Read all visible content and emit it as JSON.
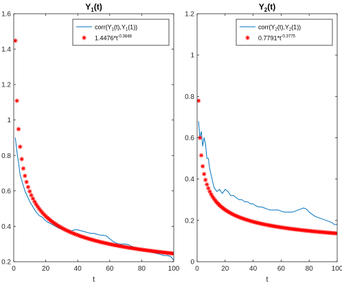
{
  "chart_data": [
    {
      "type": "line",
      "title": "Y",
      "title_sub": "1",
      "title_suffix": "(t)",
      "xlabel": "t",
      "ylabel": "",
      "xlim": [
        0,
        100
      ],
      "ylim": [
        0.2,
        1.6
      ],
      "xticks": [
        "0",
        "20",
        "40",
        "60",
        "80",
        "100"
      ],
      "yticks": [
        "0.2",
        "0.4",
        "0.6",
        "0.8",
        "1",
        "1.2",
        "1.4",
        "1.6"
      ],
      "legend": {
        "placement": "top-right",
        "entries": [
          {
            "marker": "line",
            "color": "#0072BD",
            "parts": [
              [
                "corr(Y",
                "n"
              ],
              [
                "1",
                "sub"
              ],
              [
                "(t),Y",
                "n"
              ],
              [
                "1",
                "sub"
              ],
              [
                "(1))",
                "n"
              ]
            ]
          },
          {
            "marker": "star",
            "color": "#FF0000",
            "parts": [
              [
                "1.4476*t",
                "n"
              ],
              [
                "-0.3848",
                "sup"
              ]
            ]
          }
        ]
      },
      "series": [
        {
          "kind": "line",
          "color": "#0072BD",
          "x": [
            1,
            2,
            3,
            4,
            5,
            6,
            7,
            8,
            9,
            10,
            12,
            14,
            16,
            18,
            20,
            22,
            24,
            26,
            28,
            30,
            32,
            34,
            36,
            38,
            40,
            42,
            44,
            46,
            48,
            50,
            52,
            54,
            56,
            58,
            60,
            62,
            64,
            66,
            68,
            70,
            72,
            74,
            76,
            78,
            80,
            82,
            84,
            86,
            88,
            90,
            92,
            94,
            96,
            98,
            100
          ],
          "y": [
            0.9,
            0.82,
            0.76,
            0.69,
            0.66,
            0.63,
            0.6,
            0.58,
            0.56,
            0.54,
            0.51,
            0.48,
            0.46,
            0.45,
            0.43,
            0.42,
            0.41,
            0.4,
            0.39,
            0.385,
            0.38,
            0.375,
            0.375,
            0.38,
            0.38,
            0.375,
            0.37,
            0.365,
            0.36,
            0.36,
            0.355,
            0.35,
            0.35,
            0.345,
            0.33,
            0.315,
            0.305,
            0.3,
            0.3,
            0.3,
            0.295,
            0.285,
            0.28,
            0.275,
            0.27,
            0.265,
            0.26,
            0.255,
            0.25,
            0.245,
            0.24,
            0.235,
            0.235,
            0.23,
            0.21
          ]
        },
        {
          "kind": "scatter",
          "color": "#FF0000",
          "a": 1.4476,
          "b": -0.3848,
          "x_start": 1,
          "x_end": 100,
          "x_step": 1
        }
      ]
    },
    {
      "type": "line",
      "title": "Y",
      "title_sub": "2",
      "title_suffix": "(t)",
      "xlabel": "t",
      "ylabel": "",
      "xlim": [
        0,
        100
      ],
      "ylim": [
        0,
        1.2
      ],
      "xticks": [
        "0",
        "20",
        "40",
        "60",
        "80",
        "100"
      ],
      "yticks": [
        "0",
        "0.2",
        "0.4",
        "0.6",
        "0.8",
        "1",
        "1.2"
      ],
      "legend": {
        "placement": "top-right",
        "entries": [
          {
            "marker": "line",
            "color": "#0072BD",
            "parts": [
              [
                "corr(Y",
                "n"
              ],
              [
                "2",
                "sub"
              ],
              [
                "(t),Y",
                "n"
              ],
              [
                "2",
                "sub"
              ],
              [
                "(1))",
                "n"
              ]
            ]
          },
          {
            "marker": "star",
            "color": "#FF0000",
            "parts": [
              [
                "0.7791*t",
                "n"
              ],
              [
                "-0.3775",
                "sup"
              ]
            ]
          }
        ]
      },
      "series": [
        {
          "kind": "line",
          "color": "#0072BD",
          "x": [
            1,
            2,
            3,
            4,
            5,
            6,
            7,
            8,
            9,
            10,
            12,
            14,
            16,
            18,
            20,
            22,
            24,
            26,
            28,
            30,
            32,
            34,
            36,
            38,
            40,
            42,
            44,
            46,
            48,
            50,
            52,
            54,
            56,
            58,
            60,
            62,
            64,
            66,
            68,
            70,
            72,
            74,
            76,
            78,
            80,
            82,
            84,
            86,
            88,
            90,
            92,
            94,
            96,
            98,
            100
          ],
          "y": [
            0.68,
            0.6,
            0.63,
            0.56,
            0.6,
            0.57,
            0.5,
            0.5,
            0.45,
            0.42,
            0.36,
            0.34,
            0.35,
            0.33,
            0.35,
            0.34,
            0.32,
            0.32,
            0.31,
            0.3,
            0.3,
            0.29,
            0.29,
            0.28,
            0.28,
            0.27,
            0.265,
            0.265,
            0.26,
            0.255,
            0.25,
            0.25,
            0.25,
            0.25,
            0.245,
            0.24,
            0.24,
            0.24,
            0.24,
            0.245,
            0.25,
            0.255,
            0.26,
            0.255,
            0.24,
            0.23,
            0.22,
            0.215,
            0.21,
            0.205,
            0.2,
            0.195,
            0.19,
            0.18,
            0.18
          ]
        },
        {
          "kind": "scatter",
          "color": "#FF0000",
          "a": 0.7791,
          "b": -0.3775,
          "x_start": 1,
          "x_end": 100,
          "x_step": 1
        }
      ]
    }
  ]
}
